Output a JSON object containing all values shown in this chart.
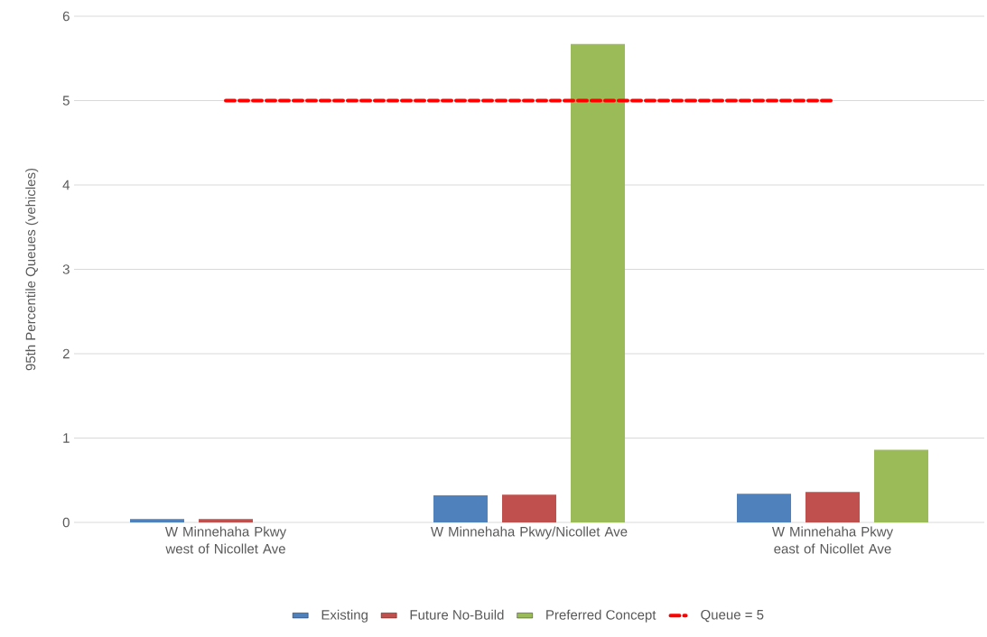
{
  "chart_data": {
    "type": "bar",
    "ylabel": "95th Percentile Queues (vehicles)",
    "categories": [
      "W Minnehaha Pkwy west of Nicollet Ave",
      "W Minnehaha Pkwy/Nicollet Ave",
      "W Minnehaha Pkwy east of Nicollet Ave"
    ],
    "series": [
      {
        "name": "Existing",
        "color": "#4f81bd",
        "values": [
          0.04,
          0.32,
          0.34
        ]
      },
      {
        "name": "Future No-Build",
        "color": "#c0504d",
        "values": [
          0.04,
          0.33,
          0.36
        ]
      },
      {
        "name": "Preferred Concept",
        "color": "#9bbb59",
        "values": [
          0,
          5.67,
          0.86
        ]
      },
      {
        "name": "Queue = 5",
        "type": "line",
        "color": "#ff0000",
        "line_style": "dashed",
        "marker": "none",
        "values": [
          5,
          5,
          5
        ]
      }
    ],
    "ylim": [
      0,
      6
    ],
    "yticks": [
      0,
      1,
      2,
      3,
      4,
      5,
      6
    ],
    "grid": "y",
    "legend": "bottom"
  }
}
